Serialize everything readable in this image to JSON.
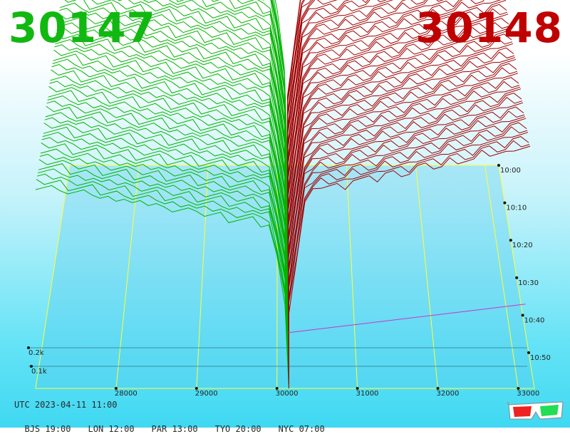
{
  "header": {
    "bid_price": "30147",
    "ask_price": "30148"
  },
  "colors": {
    "bid": "#00b400",
    "ask": "#a00000",
    "grid": "#ffff33",
    "floor": "#55ccee",
    "midline": "#cc33cc"
  },
  "chart_data": {
    "type": "area",
    "x_axis": {
      "ticks": [
        28000,
        29000,
        30000,
        31000,
        32000,
        33000
      ],
      "range": [
        27000,
        33200
      ]
    },
    "z_axis": {
      "ticks": [
        "10:00",
        "10:10",
        "10:20",
        "10:30",
        "10:40",
        "10:50"
      ]
    },
    "depth_axis": {
      "ticks": [
        "0.2k",
        "0.1k"
      ]
    },
    "bid_series": {
      "name": "30147",
      "depth_start": 290,
      "depth_end": 250
    },
    "ask_series": {
      "name": "30148",
      "depth_start": 280,
      "depth_end": 300
    },
    "time_steps": 50
  },
  "footer": {
    "utc": "UTC 2023-04-11 11:00",
    "cities": [
      {
        "code": "BJS",
        "time": "19:00"
      },
      {
        "code": "LON",
        "time": "12:00"
      },
      {
        "code": "PAR",
        "time": "13:00"
      },
      {
        "code": "TYO",
        "time": "20:00"
      },
      {
        "code": "NYC",
        "time": "07:00"
      }
    ]
  },
  "glasses_icon": "3d-glasses-icon"
}
